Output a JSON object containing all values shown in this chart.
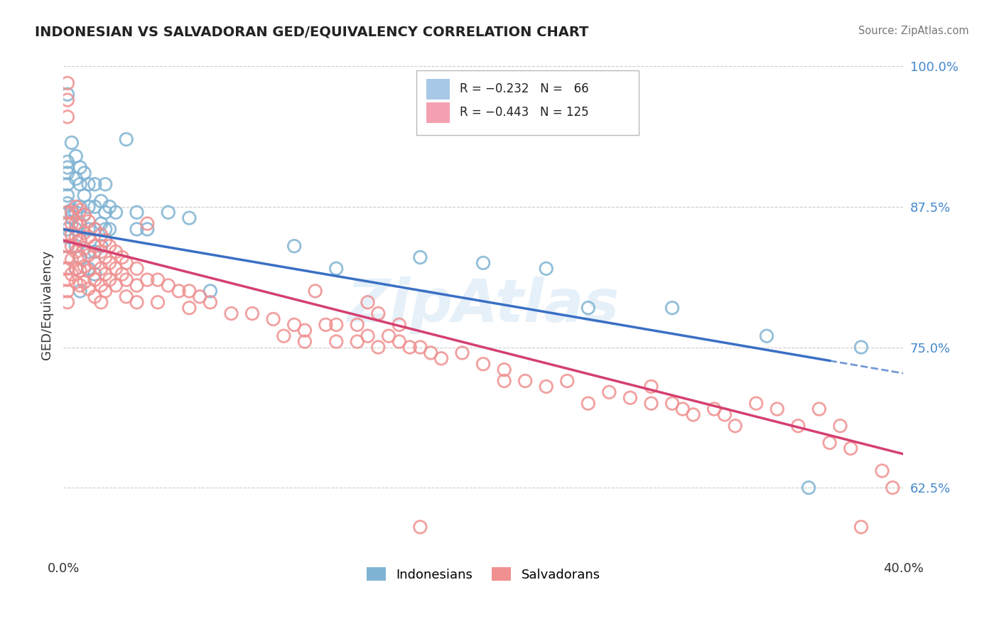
{
  "title": "INDONESIAN VS SALVADORAN GED/EQUIVALENCY CORRELATION CHART",
  "source": "Source: ZipAtlas.com",
  "ylabel": "GED/Equivalency",
  "xlim": [
    0.0,
    0.4
  ],
  "ylim": [
    0.565,
    1.01
  ],
  "ytick_labels": [
    "62.5%",
    "75.0%",
    "87.5%",
    "100.0%"
  ],
  "ytick_positions": [
    0.625,
    0.75,
    0.875,
    1.0
  ],
  "indonesian_color": "#7fb3d3",
  "salvadoran_color": "#f09090",
  "indonesian_line_color": "#3a6fc4",
  "salvadoran_line_color": "#d44070",
  "watermark": "ZipAtlas",
  "indonesian_points": [
    [
      0.002,
      0.975
    ],
    [
      0.002,
      0.915
    ],
    [
      0.002,
      0.91
    ],
    [
      0.002,
      0.905
    ],
    [
      0.002,
      0.895
    ],
    [
      0.002,
      0.885
    ],
    [
      0.002,
      0.878
    ],
    [
      0.002,
      0.87
    ],
    [
      0.002,
      0.86
    ],
    [
      0.002,
      0.855
    ],
    [
      0.002,
      0.848
    ],
    [
      0.002,
      0.84
    ],
    [
      0.004,
      0.932
    ],
    [
      0.004,
      0.872
    ],
    [
      0.004,
      0.866
    ],
    [
      0.006,
      0.92
    ],
    [
      0.006,
      0.9
    ],
    [
      0.006,
      0.87
    ],
    [
      0.006,
      0.855
    ],
    [
      0.006,
      0.84
    ],
    [
      0.006,
      0.82
    ],
    [
      0.008,
      0.91
    ],
    [
      0.008,
      0.895
    ],
    [
      0.008,
      0.875
    ],
    [
      0.008,
      0.86
    ],
    [
      0.008,
      0.845
    ],
    [
      0.008,
      0.83
    ],
    [
      0.008,
      0.8
    ],
    [
      0.01,
      0.905
    ],
    [
      0.01,
      0.885
    ],
    [
      0.01,
      0.868
    ],
    [
      0.012,
      0.895
    ],
    [
      0.012,
      0.875
    ],
    [
      0.012,
      0.855
    ],
    [
      0.012,
      0.835
    ],
    [
      0.012,
      0.82
    ],
    [
      0.015,
      0.895
    ],
    [
      0.015,
      0.875
    ],
    [
      0.015,
      0.855
    ],
    [
      0.015,
      0.835
    ],
    [
      0.015,
      0.815
    ],
    [
      0.018,
      0.88
    ],
    [
      0.018,
      0.86
    ],
    [
      0.018,
      0.84
    ],
    [
      0.02,
      0.895
    ],
    [
      0.02,
      0.87
    ],
    [
      0.02,
      0.855
    ],
    [
      0.022,
      0.875
    ],
    [
      0.022,
      0.855
    ],
    [
      0.025,
      0.87
    ],
    [
      0.03,
      0.935
    ],
    [
      0.035,
      0.87
    ],
    [
      0.035,
      0.855
    ],
    [
      0.04,
      0.855
    ],
    [
      0.05,
      0.87
    ],
    [
      0.06,
      0.865
    ],
    [
      0.07,
      0.8
    ],
    [
      0.11,
      0.84
    ],
    [
      0.13,
      0.82
    ],
    [
      0.17,
      0.83
    ],
    [
      0.2,
      0.825
    ],
    [
      0.23,
      0.82
    ],
    [
      0.25,
      0.785
    ],
    [
      0.29,
      0.785
    ],
    [
      0.335,
      0.76
    ],
    [
      0.355,
      0.625
    ],
    [
      0.38,
      0.75
    ]
  ],
  "salvadoran_points": [
    [
      0.002,
      0.985
    ],
    [
      0.002,
      0.97
    ],
    [
      0.002,
      0.955
    ],
    [
      0.002,
      0.87
    ],
    [
      0.002,
      0.86
    ],
    [
      0.002,
      0.85
    ],
    [
      0.002,
      0.84
    ],
    [
      0.002,
      0.83
    ],
    [
      0.002,
      0.82
    ],
    [
      0.002,
      0.81
    ],
    [
      0.002,
      0.8
    ],
    [
      0.002,
      0.79
    ],
    [
      0.004,
      0.87
    ],
    [
      0.004,
      0.86
    ],
    [
      0.004,
      0.85
    ],
    [
      0.004,
      0.84
    ],
    [
      0.004,
      0.828
    ],
    [
      0.004,
      0.815
    ],
    [
      0.006,
      0.875
    ],
    [
      0.006,
      0.86
    ],
    [
      0.006,
      0.848
    ],
    [
      0.006,
      0.835
    ],
    [
      0.006,
      0.82
    ],
    [
      0.006,
      0.808
    ],
    [
      0.008,
      0.872
    ],
    [
      0.008,
      0.858
    ],
    [
      0.008,
      0.845
    ],
    [
      0.008,
      0.83
    ],
    [
      0.008,
      0.818
    ],
    [
      0.008,
      0.805
    ],
    [
      0.01,
      0.868
    ],
    [
      0.01,
      0.852
    ],
    [
      0.01,
      0.838
    ],
    [
      0.01,
      0.822
    ],
    [
      0.01,
      0.808
    ],
    [
      0.012,
      0.862
    ],
    [
      0.012,
      0.848
    ],
    [
      0.012,
      0.832
    ],
    [
      0.012,
      0.818
    ],
    [
      0.012,
      0.802
    ],
    [
      0.015,
      0.855
    ],
    [
      0.015,
      0.84
    ],
    [
      0.015,
      0.825
    ],
    [
      0.015,
      0.81
    ],
    [
      0.015,
      0.795
    ],
    [
      0.018,
      0.85
    ],
    [
      0.018,
      0.835
    ],
    [
      0.018,
      0.82
    ],
    [
      0.018,
      0.805
    ],
    [
      0.018,
      0.79
    ],
    [
      0.02,
      0.845
    ],
    [
      0.02,
      0.83
    ],
    [
      0.02,
      0.815
    ],
    [
      0.02,
      0.8
    ],
    [
      0.022,
      0.84
    ],
    [
      0.022,
      0.825
    ],
    [
      0.022,
      0.81
    ],
    [
      0.025,
      0.835
    ],
    [
      0.025,
      0.82
    ],
    [
      0.025,
      0.805
    ],
    [
      0.028,
      0.83
    ],
    [
      0.028,
      0.815
    ],
    [
      0.03,
      0.825
    ],
    [
      0.03,
      0.81
    ],
    [
      0.03,
      0.795
    ],
    [
      0.035,
      0.82
    ],
    [
      0.035,
      0.805
    ],
    [
      0.035,
      0.79
    ],
    [
      0.04,
      0.86
    ],
    [
      0.04,
      0.81
    ],
    [
      0.045,
      0.81
    ],
    [
      0.045,
      0.79
    ],
    [
      0.05,
      0.805
    ],
    [
      0.055,
      0.8
    ],
    [
      0.06,
      0.8
    ],
    [
      0.06,
      0.785
    ],
    [
      0.065,
      0.795
    ],
    [
      0.07,
      0.79
    ],
    [
      0.08,
      0.78
    ],
    [
      0.09,
      0.78
    ],
    [
      0.1,
      0.775
    ],
    [
      0.105,
      0.76
    ],
    [
      0.11,
      0.77
    ],
    [
      0.115,
      0.765
    ],
    [
      0.115,
      0.755
    ],
    [
      0.12,
      0.8
    ],
    [
      0.125,
      0.77
    ],
    [
      0.13,
      0.77
    ],
    [
      0.13,
      0.755
    ],
    [
      0.14,
      0.77
    ],
    [
      0.14,
      0.755
    ],
    [
      0.145,
      0.79
    ],
    [
      0.145,
      0.76
    ],
    [
      0.15,
      0.78
    ],
    [
      0.15,
      0.75
    ],
    [
      0.155,
      0.76
    ],
    [
      0.16,
      0.77
    ],
    [
      0.16,
      0.755
    ],
    [
      0.165,
      0.75
    ],
    [
      0.17,
      0.75
    ],
    [
      0.175,
      0.745
    ],
    [
      0.18,
      0.74
    ],
    [
      0.19,
      0.745
    ],
    [
      0.2,
      0.735
    ],
    [
      0.21,
      0.73
    ],
    [
      0.21,
      0.72
    ],
    [
      0.22,
      0.72
    ],
    [
      0.23,
      0.715
    ],
    [
      0.24,
      0.72
    ],
    [
      0.25,
      0.7
    ],
    [
      0.26,
      0.71
    ],
    [
      0.27,
      0.705
    ],
    [
      0.28,
      0.715
    ],
    [
      0.28,
      0.7
    ],
    [
      0.29,
      0.7
    ],
    [
      0.295,
      0.695
    ],
    [
      0.3,
      0.69
    ],
    [
      0.31,
      0.695
    ],
    [
      0.315,
      0.69
    ],
    [
      0.32,
      0.68
    ],
    [
      0.33,
      0.7
    ],
    [
      0.34,
      0.695
    ],
    [
      0.35,
      0.68
    ],
    [
      0.36,
      0.695
    ],
    [
      0.365,
      0.665
    ],
    [
      0.37,
      0.68
    ],
    [
      0.375,
      0.66
    ],
    [
      0.38,
      0.59
    ],
    [
      0.39,
      0.64
    ],
    [
      0.395,
      0.625
    ],
    [
      0.17,
      0.59
    ]
  ]
}
